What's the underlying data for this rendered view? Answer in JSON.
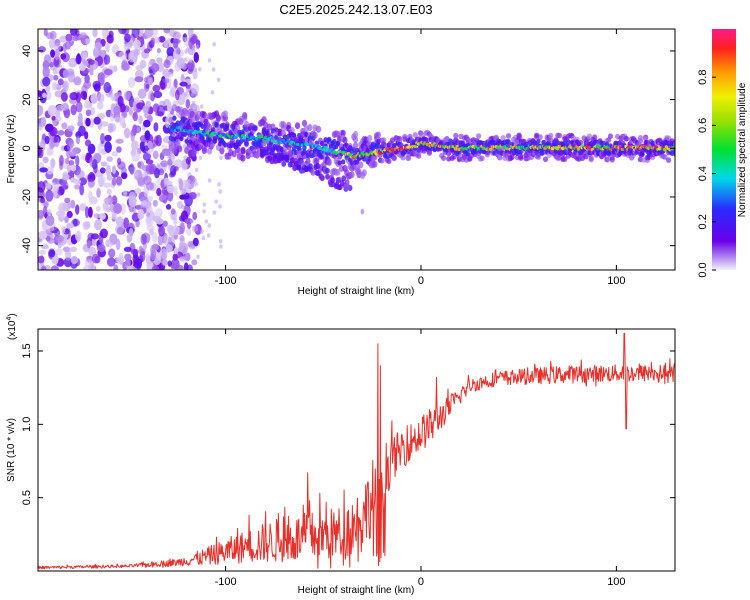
{
  "title": "C2E5.2025.242.13.07.E03",
  "colors": {
    "snr_line": "#e8302a",
    "axis": "#000000",
    "background": "#ffffff"
  },
  "chart_data": [
    {
      "type": "heatmap",
      "name": "spectrogram",
      "xlabel": "Height of straight line (km)",
      "ylabel": "Frequency (Hz)",
      "xlim": [
        -196,
        130
      ],
      "ylim": [
        -50,
        49
      ],
      "xticks": [
        -100,
        0,
        100
      ],
      "xtick_labels": [
        "-100",
        "0",
        "100"
      ],
      "yticks": [
        -40,
        -20,
        0,
        20,
        40
      ],
      "ytick_labels": [
        "-40",
        "-20",
        "0",
        "20",
        "40"
      ],
      "colorbar": {
        "label": "Normalized spectral amplitude",
        "range": [
          0,
          1
        ],
        "ticks": [
          0,
          0.2,
          0.4,
          0.6,
          0.8
        ],
        "tick_labels": [
          "0.0",
          "0.2",
          "0.4",
          "0.6",
          "0.8"
        ]
      },
      "features": {
        "noise_region_x": [
          -196,
          -122
        ],
        "noise_amplitude": 0.12,
        "ridge": [
          {
            "x": -125,
            "freq": 8,
            "amp": 0.45
          },
          {
            "x": -110,
            "freq": 6,
            "amp": 0.5
          },
          {
            "x": -95,
            "freq": 5,
            "amp": 0.5
          },
          {
            "x": -80,
            "freq": 4,
            "amp": 0.5
          },
          {
            "x": -65,
            "freq": 2,
            "amp": 0.45
          },
          {
            "x": -55,
            "freq": 1,
            "amp": 0.45
          },
          {
            "x": -45,
            "freq": -1,
            "amp": 0.55
          },
          {
            "x": -35,
            "freq": -3,
            "amp": 0.85
          },
          {
            "x": -25,
            "freq": -2,
            "amp": 0.9
          },
          {
            "x": -10,
            "freq": 0,
            "amp": 0.9
          },
          {
            "x": 0,
            "freq": 2,
            "amp": 0.85
          },
          {
            "x": 20,
            "freq": 0,
            "amp": 0.75
          },
          {
            "x": 60,
            "freq": 0.5,
            "amp": 0.8
          },
          {
            "x": 100,
            "freq": 0,
            "amp": 0.95
          },
          {
            "x": 130,
            "freq": 0,
            "amp": 0.9
          }
        ],
        "lower_tail": [
          {
            "x": -80,
            "freq": -2
          },
          {
            "x": -65,
            "freq": -6
          },
          {
            "x": -50,
            "freq": -10
          },
          {
            "x": -45,
            "freq": -13
          },
          {
            "x": -38,
            "freq": -15
          }
        ]
      }
    },
    {
      "type": "line",
      "name": "snr",
      "xlabel": "Height of straight line (km)",
      "ylabel": "SNR (10 * v/v)",
      "multiplier_label": "(x10",
      "multiplier_exp": "4",
      "xlim": [
        -196,
        130
      ],
      "ylim": [
        0,
        1.65
      ],
      "xticks": [
        -100,
        0,
        100
      ],
      "xtick_labels": [
        "-100",
        "0",
        "100"
      ],
      "yticks": [
        0.5,
        1.0,
        1.5
      ],
      "ytick_labels": [
        "0.5",
        "1.0",
        "1.5"
      ],
      "envelope": [
        {
          "x": -196,
          "base": 0.02,
          "noise": 0.02
        },
        {
          "x": -150,
          "base": 0.03,
          "noise": 0.02
        },
        {
          "x": -125,
          "base": 0.05,
          "noise": 0.05
        },
        {
          "x": -110,
          "base": 0.08,
          "noise": 0.12
        },
        {
          "x": -95,
          "base": 0.12,
          "noise": 0.2
        },
        {
          "x": -75,
          "base": 0.16,
          "noise": 0.3
        },
        {
          "x": -55,
          "base": 0.18,
          "noise": 0.35
        },
        {
          "x": -40,
          "base": 0.2,
          "noise": 0.38
        },
        {
          "x": -30,
          "base": 0.3,
          "noise": 0.45
        },
        {
          "x": -22,
          "base": 0.5,
          "noise": 0.55
        },
        {
          "x": -15,
          "base": 0.72,
          "noise": 0.3
        },
        {
          "x": -5,
          "base": 0.85,
          "noise": 0.25
        },
        {
          "x": 5,
          "base": 0.95,
          "noise": 0.25
        },
        {
          "x": 15,
          "base": 1.1,
          "noise": 0.15
        },
        {
          "x": 25,
          "base": 1.25,
          "noise": 0.1
        },
        {
          "x": 40,
          "base": 1.3,
          "noise": 0.1
        },
        {
          "x": 70,
          "base": 1.32,
          "noise": 0.12
        },
        {
          "x": 100,
          "base": 1.33,
          "noise": 0.12
        },
        {
          "x": 130,
          "base": 1.33,
          "noise": 0.12
        }
      ],
      "spikes": [
        {
          "x": -22,
          "y": 1.55
        },
        {
          "x": -21,
          "y": 1.4
        },
        {
          "x": -58,
          "y": 0.67
        },
        {
          "x": 104,
          "y": 1.62
        },
        {
          "x": 105,
          "y": 0.97
        },
        {
          "x": -88,
          "y": 0.38
        },
        {
          "x": 8,
          "y": 1.32
        }
      ],
      "samples": 1000
    }
  ]
}
